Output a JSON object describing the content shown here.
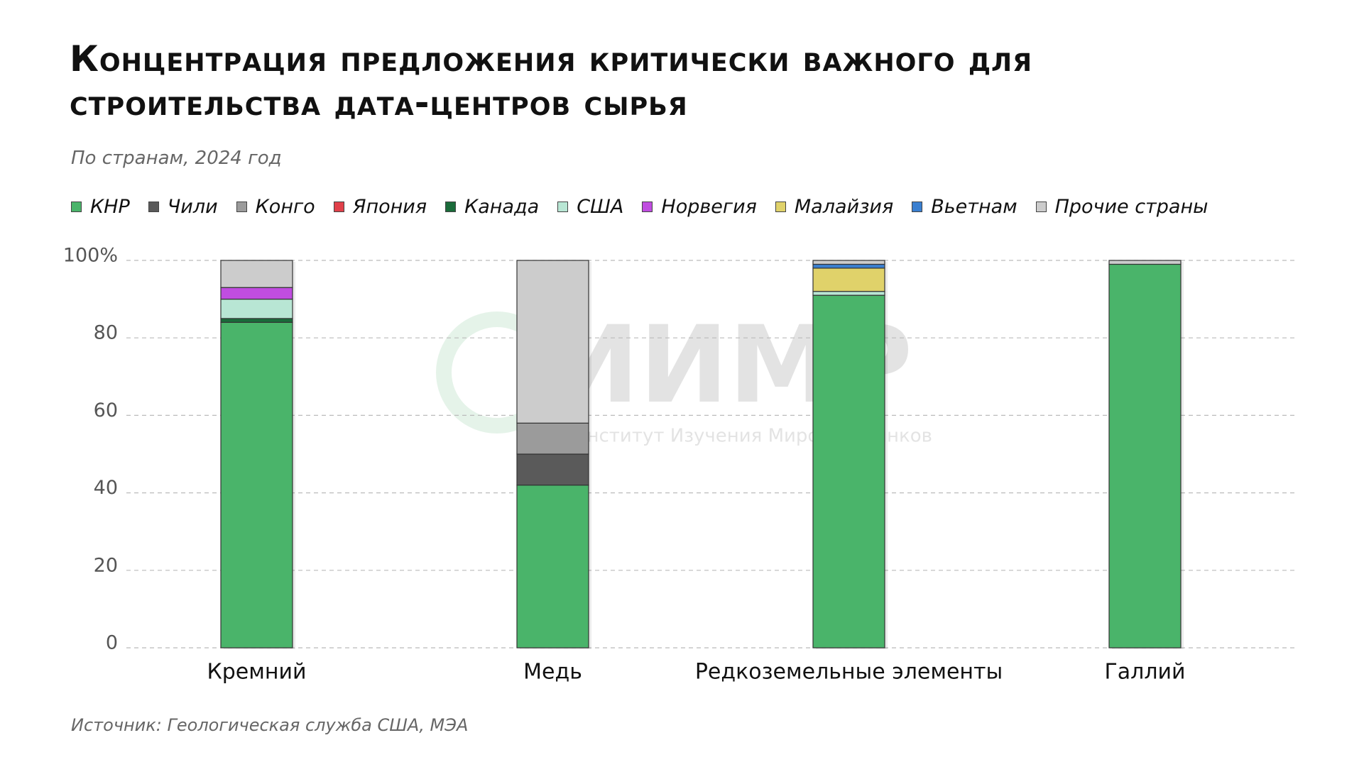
{
  "chart_data": {
    "type": "stacked-bar",
    "title": "Концентрация предложения критически важного для строительства дата-центров сырья",
    "subtitle": "По странам, 2024 год",
    "source": "Источник: Геологическая служба США, МЭА",
    "watermark": {
      "logo": "ИИМР",
      "text": "Институт Изучения Мировых Рынков"
    },
    "categories": [
      "Кремний",
      "Медь",
      "Редкоземельные элементы",
      "Галлий"
    ],
    "series": [
      {
        "name": "КНР",
        "color": "#4ab46a",
        "values": [
          84,
          42,
          91,
          99
        ]
      },
      {
        "name": "Чили",
        "color": "#5a5a5a",
        "values": [
          0,
          8,
          0,
          0
        ]
      },
      {
        "name": "Конго",
        "color": "#9b9b9b",
        "values": [
          0,
          8,
          0,
          0
        ]
      },
      {
        "name": "Япония",
        "color": "#e0404a",
        "values": [
          0,
          0,
          0,
          0
        ]
      },
      {
        "name": "Канада",
        "color": "#1a6b3a",
        "values": [
          1,
          0,
          0,
          0
        ]
      },
      {
        "name": "США",
        "color": "#b8e6d4",
        "values": [
          5,
          0,
          1,
          0
        ]
      },
      {
        "name": "Норвегия",
        "color": "#c04de0",
        "values": [
          3,
          0,
          0,
          0
        ]
      },
      {
        "name": "Малайзия",
        "color": "#e0d26a",
        "values": [
          0,
          0,
          6,
          0
        ]
      },
      {
        "name": "Вьетнам",
        "color": "#3a7fd0",
        "values": [
          0,
          0,
          1,
          0
        ]
      },
      {
        "name": "Прочие страны",
        "color": "#cccccc",
        "values": [
          7,
          42,
          1,
          1
        ]
      }
    ],
    "ylim": [
      0,
      100
    ],
    "yticks": [
      0,
      20,
      40,
      60,
      80,
      {
        "value": 100,
        "label": "100%"
      }
    ],
    "grid": true
  }
}
